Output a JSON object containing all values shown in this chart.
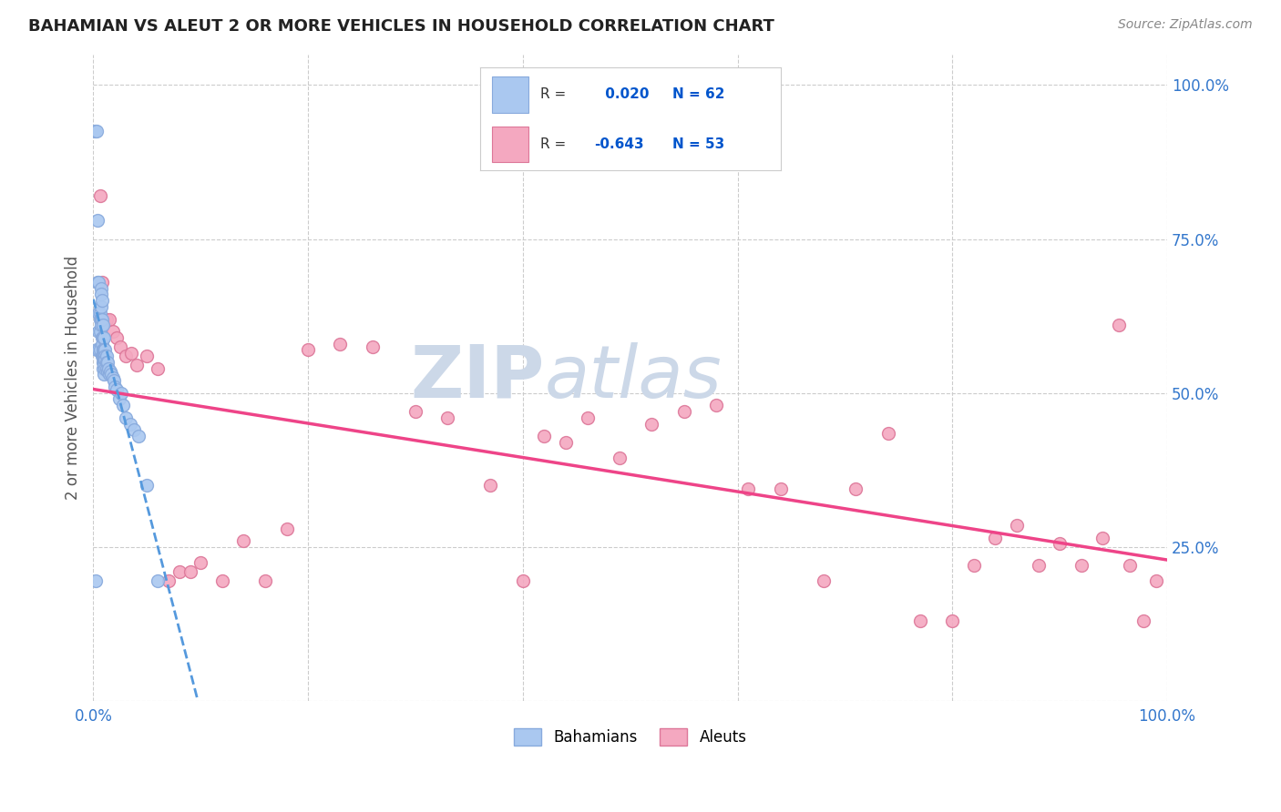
{
  "title": "BAHAMIAN VS ALEUT 2 OR MORE VEHICLES IN HOUSEHOLD CORRELATION CHART",
  "source": "Source: ZipAtlas.com",
  "ylabel": "2 or more Vehicles in Household",
  "bahamian_color": "#aac8f0",
  "aleut_color": "#f4a8c0",
  "bahamian_edge_color": "#88aadd",
  "aleut_edge_color": "#dd7799",
  "trendline_bahamian_color": "#5599dd",
  "trendline_aleut_color": "#ee4488",
  "R_bahamian": 0.02,
  "N_bahamian": 62,
  "R_aleut": -0.643,
  "N_aleut": 53,
  "legend_R_color": "#0055cc",
  "background_color": "#ffffff",
  "grid_color": "#cccccc",
  "watermark_zip": "ZIP",
  "watermark_atlas": "atlas",
  "watermark_color": "#ccd8e8",
  "marker_size": 100,
  "bahamian_x": [
    0.001,
    0.002,
    0.003,
    0.003,
    0.004,
    0.004,
    0.005,
    0.005,
    0.005,
    0.005,
    0.006,
    0.006,
    0.006,
    0.006,
    0.007,
    0.007,
    0.007,
    0.007,
    0.007,
    0.008,
    0.008,
    0.008,
    0.008,
    0.008,
    0.009,
    0.009,
    0.009,
    0.009,
    0.009,
    0.009,
    0.01,
    0.01,
    0.01,
    0.01,
    0.01,
    0.01,
    0.011,
    0.011,
    0.011,
    0.011,
    0.012,
    0.012,
    0.012,
    0.013,
    0.013,
    0.014,
    0.015,
    0.016,
    0.017,
    0.018,
    0.019,
    0.02,
    0.022,
    0.024,
    0.026,
    0.028,
    0.03,
    0.034,
    0.038,
    0.042,
    0.05,
    0.06
  ],
  "bahamian_y": [
    0.925,
    0.195,
    0.925,
    0.57,
    0.78,
    0.68,
    0.68,
    0.63,
    0.6,
    0.57,
    0.63,
    0.62,
    0.6,
    0.57,
    0.67,
    0.66,
    0.64,
    0.62,
    0.61,
    0.65,
    0.62,
    0.59,
    0.58,
    0.56,
    0.61,
    0.59,
    0.57,
    0.56,
    0.55,
    0.54,
    0.59,
    0.57,
    0.56,
    0.55,
    0.545,
    0.53,
    0.57,
    0.56,
    0.555,
    0.54,
    0.56,
    0.55,
    0.54,
    0.55,
    0.535,
    0.54,
    0.53,
    0.535,
    0.53,
    0.525,
    0.52,
    0.51,
    0.505,
    0.49,
    0.5,
    0.48,
    0.46,
    0.45,
    0.44,
    0.43,
    0.35,
    0.195
  ],
  "aleut_x": [
    0.006,
    0.008,
    0.01,
    0.012,
    0.015,
    0.018,
    0.022,
    0.025,
    0.03,
    0.035,
    0.04,
    0.05,
    0.06,
    0.07,
    0.08,
    0.09,
    0.1,
    0.12,
    0.14,
    0.16,
    0.18,
    0.2,
    0.23,
    0.26,
    0.3,
    0.33,
    0.37,
    0.4,
    0.42,
    0.44,
    0.46,
    0.49,
    0.52,
    0.55,
    0.58,
    0.61,
    0.64,
    0.68,
    0.71,
    0.74,
    0.77,
    0.8,
    0.82,
    0.84,
    0.86,
    0.88,
    0.9,
    0.92,
    0.94,
    0.955,
    0.965,
    0.978,
    0.99
  ],
  "aleut_y": [
    0.82,
    0.68,
    0.62,
    0.62,
    0.62,
    0.6,
    0.59,
    0.575,
    0.56,
    0.565,
    0.545,
    0.56,
    0.54,
    0.195,
    0.21,
    0.21,
    0.225,
    0.195,
    0.26,
    0.195,
    0.28,
    0.57,
    0.58,
    0.575,
    0.47,
    0.46,
    0.35,
    0.195,
    0.43,
    0.42,
    0.46,
    0.395,
    0.45,
    0.47,
    0.48,
    0.345,
    0.345,
    0.195,
    0.345,
    0.435,
    0.13,
    0.13,
    0.22,
    0.265,
    0.285,
    0.22,
    0.255,
    0.22,
    0.265,
    0.61,
    0.22,
    0.13,
    0.195
  ],
  "xlim": [
    0.0,
    1.0
  ],
  "ylim": [
    0.0,
    1.05
  ],
  "xticks": [
    0.0,
    0.2,
    0.4,
    0.6,
    0.8,
    1.0
  ],
  "yticks": [
    0.0,
    0.25,
    0.5,
    0.75,
    1.0
  ],
  "ytick_labels_right": [
    "",
    "25.0%",
    "50.0%",
    "75.0%",
    "100.0%"
  ],
  "xtick_labels": [
    "0.0%",
    "",
    "",
    "",
    "",
    "100.0%"
  ]
}
